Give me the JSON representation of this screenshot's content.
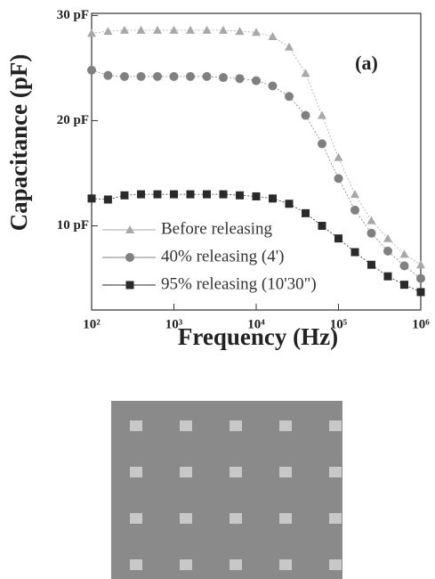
{
  "chart_data": {
    "type": "line",
    "xlabel": "Frequency (Hz)",
    "ylabel": "Capacitance (pF)",
    "annotation": "(a)",
    "log_x": true,
    "xlim": [
      100,
      1000000
    ],
    "xticks": [
      {
        "value": 100,
        "label": "10²"
      },
      {
        "value": 1000,
        "label": "10³"
      },
      {
        "value": 10000,
        "label": "10⁴"
      },
      {
        "value": 100000,
        "label": "10⁵"
      },
      {
        "value": 1000000,
        "label": "10⁶"
      }
    ],
    "ylim": [
      2,
      30.2
    ],
    "yticks": [
      {
        "value": 10,
        "label": "10 pF"
      },
      {
        "value": 20,
        "label": "20 pF"
      },
      {
        "value": 30,
        "label": "30 pF"
      }
    ],
    "legend": "lower left",
    "x": [
      100,
      158,
      251,
      398,
      631,
      1000,
      1585,
      2512,
      3981,
      6310,
      10000,
      15849,
      25119,
      39811,
      63096,
      100000,
      158489,
      251189,
      398107,
      630957,
      1000000
    ],
    "series": [
      {
        "name": "Before releasing",
        "color": "#a8a8a8",
        "marker": "triangle",
        "values": [
          28.3,
          28.5,
          28.6,
          28.6,
          28.6,
          28.6,
          28.6,
          28.6,
          28.6,
          28.5,
          28.4,
          28.0,
          27.0,
          24.5,
          20.5,
          16.5,
          13.0,
          10.5,
          8.8,
          7.3,
          6.3
        ]
      },
      {
        "name": "40% releasing (4')",
        "color": "#808080",
        "marker": "circle",
        "values": [
          24.8,
          24.3,
          24.2,
          24.2,
          24.2,
          24.2,
          24.2,
          24.2,
          24.1,
          24.0,
          23.8,
          23.3,
          22.3,
          20.5,
          17.8,
          14.5,
          11.5,
          9.3,
          7.6,
          6.2,
          5.0
        ]
      },
      {
        "name": "95% releasing (10'30\")",
        "color": "#2a2a2a",
        "marker": "square",
        "values": [
          12.6,
          12.5,
          12.9,
          13.0,
          13.0,
          13.0,
          13.0,
          13.0,
          13.0,
          12.9,
          12.8,
          12.6,
          12.1,
          11.2,
          10.0,
          8.8,
          7.5,
          6.3,
          5.2,
          4.4,
          3.7
        ]
      }
    ]
  }
}
